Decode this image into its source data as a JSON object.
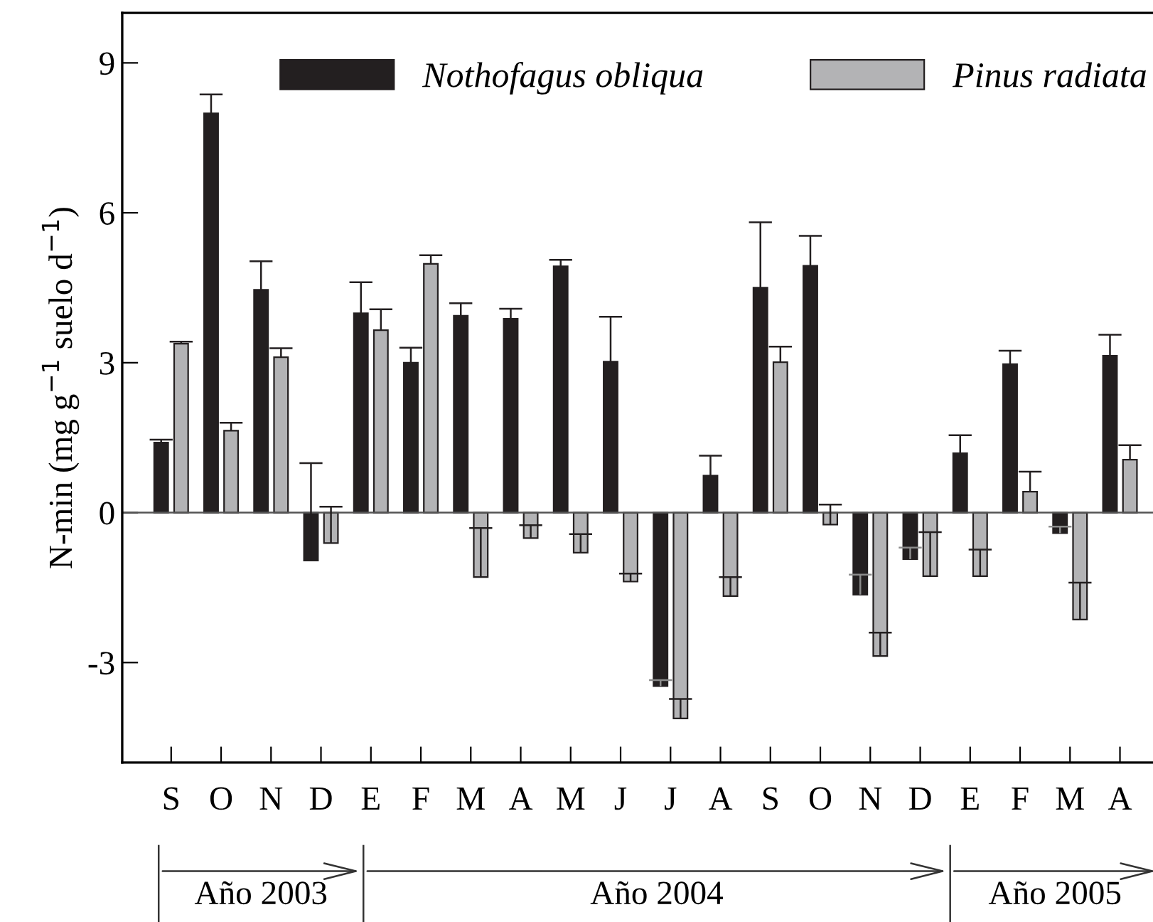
{
  "chart_data": {
    "type": "bar",
    "ylabel": "N-min (mg g$^{−1}$ suelo d$^{−1}$)",
    "categories": [
      "S",
      "O",
      "N",
      "D",
      "E",
      "F",
      "M",
      "A",
      "M",
      "J",
      "J",
      "A",
      "S",
      "O",
      "N",
      "D",
      "E",
      "F",
      "M",
      "A"
    ],
    "series": [
      {
        "name": "Nothofagus obliqua",
        "color": "#231f20",
        "values": [
          1.4,
          7.99,
          4.46,
          -0.96,
          3.99,
          3.0,
          3.94,
          3.88,
          4.93,
          3.02,
          -3.47,
          0.74,
          4.5,
          4.94,
          -1.64,
          -0.93,
          1.19,
          2.97,
          -0.41,
          3.14
        ],
        "errors": [
          [
            1.4,
            1.46
          ],
          [
            7.99,
            8.37
          ],
          [
            4.46,
            5.03
          ],
          [
            -0.96,
            0.99
          ],
          [
            3.99,
            4.61
          ],
          [
            3.0,
            3.3
          ],
          [
            3.94,
            4.19
          ],
          [
            3.88,
            4.08
          ],
          [
            4.93,
            5.06
          ],
          [
            3.02,
            3.92
          ],
          [
            -3.47,
            -3.35
          ],
          [
            0.74,
            1.14
          ],
          [
            4.5,
            5.81
          ],
          [
            4.94,
            5.54
          ],
          [
            -1.64,
            -1.24
          ],
          [
            -0.93,
            -0.7
          ],
          [
            1.19,
            1.55
          ],
          [
            2.97,
            3.24
          ],
          [
            -0.41,
            -0.28
          ],
          [
            3.14,
            3.56
          ]
        ]
      },
      {
        "name": "Pinus radiata",
        "color": "#b3b3b5",
        "values": [
          3.38,
          1.64,
          3.11,
          -0.61,
          3.65,
          4.98,
          -1.29,
          -0.51,
          -0.8,
          -1.38,
          -4.12,
          -1.67,
          3.01,
          -0.24,
          -2.87,
          -1.27,
          -1.27,
          0.42,
          -2.14,
          1.06
        ],
        "errors": [
          [
            3.38,
            3.42
          ],
          [
            1.64,
            1.8
          ],
          [
            3.11,
            3.29
          ],
          [
            -0.61,
            0.12
          ],
          [
            3.65,
            4.07
          ],
          [
            4.98,
            5.15
          ],
          [
            -1.29,
            -0.31
          ],
          [
            -0.51,
            -0.25
          ],
          [
            -0.8,
            -0.43
          ],
          [
            -1.38,
            -1.22
          ],
          [
            -4.12,
            -3.73
          ],
          [
            -1.67,
            -1.29
          ],
          [
            3.01,
            3.32
          ],
          [
            -0.24,
            0.16
          ],
          [
            -2.87,
            -2.4
          ],
          [
            -1.27,
            -0.39
          ],
          [
            -1.27,
            -0.74
          ],
          [
            0.42,
            0.82
          ],
          [
            -2.14,
            -1.4
          ],
          [
            1.06,
            1.35
          ]
        ]
      }
    ],
    "ylim": [
      -5,
      10
    ],
    "yticks": [
      -3,
      0,
      3,
      6,
      9
    ],
    "ref_lines": [
      {
        "axis": "y",
        "value": 0,
        "color": "#555555"
      }
    ],
    "annotations": [
      "Año 2003",
      "Año 2004",
      "Año 2005"
    ],
    "legend": "top",
    "grid": false
  }
}
